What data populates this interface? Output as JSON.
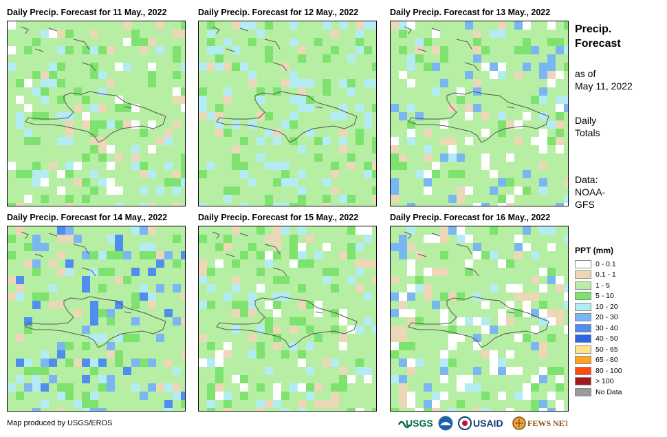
{
  "panels": [
    {
      "title": "Daily Precip. Forecast for 11 May., 2022"
    },
    {
      "title": "Daily Precip. Forecast for 12 May., 2022"
    },
    {
      "title": "Daily Precip. Forecast for 13 May., 2022"
    },
    {
      "title": "Daily Precip. Forecast for 14 May., 2022"
    },
    {
      "title": "Daily Precip. Forecast for 15 May., 2022"
    },
    {
      "title": "Daily Precip. Forecast for 16 May., 2022"
    }
  ],
  "sidebar": {
    "title_line1": "Precip.",
    "title_line2": "Forecast",
    "asof_line1": "as of",
    "asof_line2": "May 11, 2022",
    "totals_line1": "Daily",
    "totals_line2": "Totals",
    "data_line1": "Data:",
    "data_line2": "NOAA-",
    "data_line3": "GFS"
  },
  "legend": {
    "title": "PPT (mm)",
    "items": [
      {
        "label": "0 - 0.1",
        "color": "#ffffff"
      },
      {
        "label": "0.1 - 1",
        "color": "#ecd8b6"
      },
      {
        "label": "1 - 5",
        "color": "#b6efa4"
      },
      {
        "label": "5 - 10",
        "color": "#7ee26e"
      },
      {
        "label": "10 - 20",
        "color": "#b4ecf4"
      },
      {
        "label": "20 - 30",
        "color": "#7ab6f2"
      },
      {
        "label": "30 - 40",
        "color": "#4f8eee"
      },
      {
        "label": "40 - 50",
        "color": "#2c64e6"
      },
      {
        "label": "50 - 65",
        "color": "#ffe38a"
      },
      {
        "label": "65 - 80",
        "color": "#ffa21e"
      },
      {
        "label": "80 - 100",
        "color": "#ff4a10"
      },
      {
        "label": "> 100",
        "color": "#a3191c"
      },
      {
        "label": "No Data",
        "color": "#9a9a9a"
      }
    ]
  },
  "footer": {
    "credit": "Map produced by USGS/EROS",
    "logos": [
      "USGS",
      "NOAA",
      "USAID",
      "FEWS NET"
    ]
  }
}
